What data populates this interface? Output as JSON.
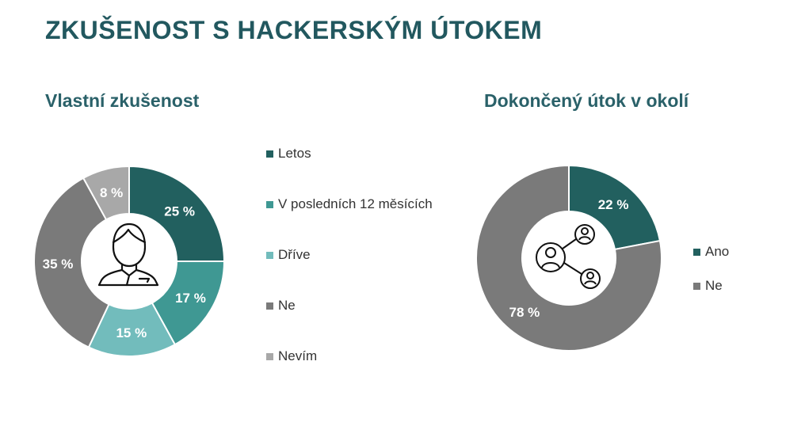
{
  "title": "ZKUŠENOST S HACKERSKÝM ÚTOKEM",
  "chart_data": [
    {
      "type": "pie",
      "variant": "donut",
      "title": "Vlastní zkušenost",
      "center_icon": "person-icon",
      "legend_position": "right",
      "slices": [
        {
          "label": "Letos",
          "value": 25,
          "display": "25 %",
          "color": "#22605f"
        },
        {
          "label": "V posledních 12 měsících",
          "value": 17,
          "display": "17 %",
          "color": "#3f9893"
        },
        {
          "label": "Dříve",
          "value": 15,
          "display": "15 %",
          "color": "#72bcbc"
        },
        {
          "label": "Ne",
          "value": 35,
          "display": "35 %",
          "color": "#7a7a7a"
        },
        {
          "label": "Nevím",
          "value": 8,
          "display": "8 %",
          "color": "#a8a8a8"
        }
      ]
    },
    {
      "type": "pie",
      "variant": "donut",
      "title": "Dokončený útok v okolí",
      "center_icon": "network-people-icon",
      "legend_position": "right",
      "slices": [
        {
          "label": "Ano",
          "value": 22,
          "display": "22 %",
          "color": "#22605f"
        },
        {
          "label": "Ne",
          "value": 78,
          "display": "78 %",
          "color": "#7a7a7a"
        }
      ]
    }
  ]
}
